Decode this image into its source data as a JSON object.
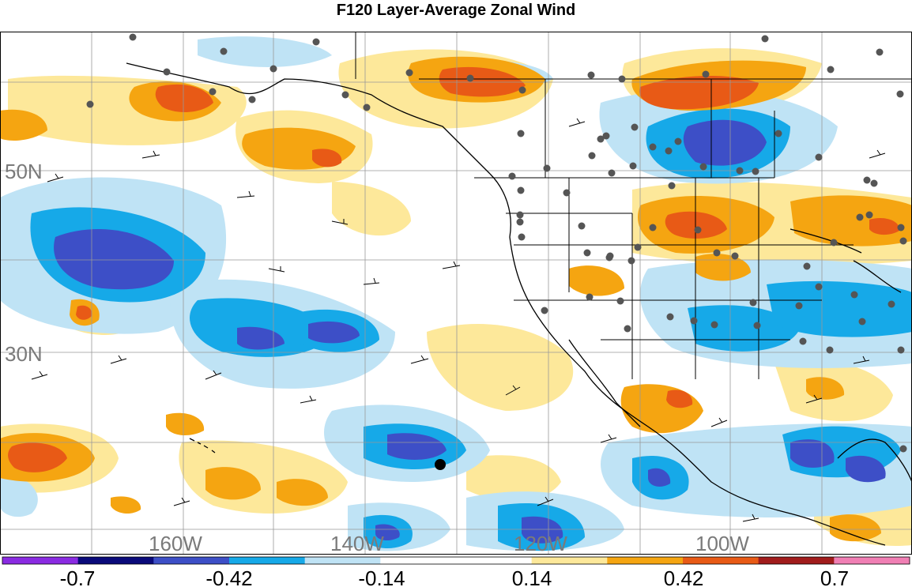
{
  "title": "F120 Layer-Average Zonal Wind",
  "lat_labels": [
    "50N",
    "30N"
  ],
  "lon_labels": [
    "160W",
    "140W",
    "120W",
    "100W"
  ],
  "colorbar": {
    "tick_labels": [
      "-0.7",
      "-0.42",
      "-0.14",
      "0.14",
      "0.42",
      "0.7"
    ],
    "colors": [
      "#8a2be2",
      "#0a0a7a",
      "#3d4fc7",
      "#16a9e8",
      "#bfe3f5",
      "#ffffff",
      "#ffffff",
      "#fde89a",
      "#f5a511",
      "#e85a16",
      "#a11c1c",
      "#f07fb4"
    ]
  },
  "colors": {
    "strong_negative": "#3d4fc7",
    "negative": "#16a9e8",
    "weak_negative": "#bfe3f5",
    "weak_positive": "#fde89a",
    "positive": "#f5a511",
    "strong_positive": "#e85a16",
    "station_dot": "#555555",
    "marker": "#000000"
  }
}
